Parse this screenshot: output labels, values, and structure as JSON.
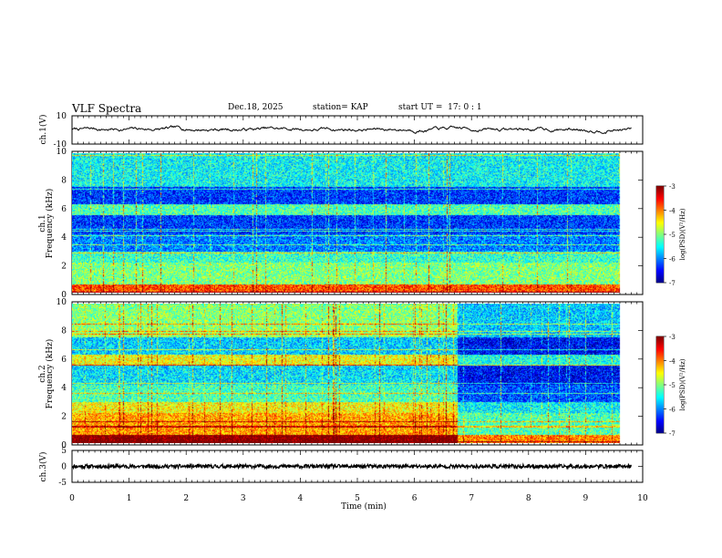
{
  "header": {
    "title": "VLF Spectra",
    "date": "Dec.18, 2025",
    "station_prefix": "station= ",
    "station": "KAP",
    "start_label": "start  UT  =",
    "start_time": "17: 0  : 1"
  },
  "chart_data": [
    {
      "type": "line",
      "panel": "waveform",
      "ylabel": "ch.1(V)",
      "ylim": [
        -10,
        10
      ],
      "ytick_labels": [
        "10",
        "-10"
      ],
      "xlim": [
        0,
        10
      ],
      "data_extent_min": [
        0,
        9.8
      ],
      "series": [
        {
          "name": "ch.1 waveform",
          "color": "#000000",
          "amplitude_range_v": [
            -2.5,
            3.5
          ],
          "mean_v": 0.5
        }
      ]
    },
    {
      "type": "heatmap",
      "panel": "spectrogram-ch1",
      "ylabel_line1": "ch.1",
      "ylabel_line2": "Frequency  (kHz)",
      "ylim": [
        0,
        10
      ],
      "ytick_labels": [
        "0",
        "2",
        "4",
        "6",
        "8",
        "10"
      ],
      "xlim": [
        0,
        10
      ],
      "data_extent_min": [
        0,
        9.8
      ],
      "colorbar": {
        "label": "log(PSD)(V²/Hz)",
        "range": [
          -7,
          -3
        ],
        "tick_labels": [
          "-3",
          "-4",
          "-5",
          "-6",
          "-7"
        ]
      },
      "description_levels": [
        {
          "band_khz": [
            0,
            0.6
          ],
          "level": -3.8
        },
        {
          "band_khz": [
            0.6,
            2.2
          ],
          "level": -5.0
        },
        {
          "band_khz": [
            2.2,
            3.0
          ],
          "level": -5.3
        },
        {
          "band_khz": [
            3.0,
            4.2
          ],
          "level": -6.0
        },
        {
          "band_khz": [
            4.2,
            5.6
          ],
          "level": -6.3
        },
        {
          "band_khz": [
            5.6,
            6.4
          ],
          "level": -5.2
        },
        {
          "band_khz": [
            6.4,
            7.6
          ],
          "level": -6.3
        },
        {
          "band_khz": [
            7.6,
            10
          ],
          "level": -5.5
        }
      ]
    },
    {
      "type": "heatmap",
      "panel": "spectrogram-ch2",
      "ylabel_line1": "ch.2",
      "ylabel_line2": "Frequency  (kHz)",
      "ylim": [
        0,
        10
      ],
      "ytick_labels": [
        "0",
        "2",
        "4",
        "6",
        "8",
        "10"
      ],
      "xlim": [
        0,
        10
      ],
      "data_extent_min": [
        0,
        9.8
      ],
      "colorbar": {
        "label": "log(PSD)(V²/Hz)",
        "range": [
          -7,
          -3
        ],
        "tick_labels": [
          "-3",
          "-4",
          "-5",
          "-6",
          "-7"
        ]
      },
      "level_change_time_min": 6.9
    },
    {
      "type": "line",
      "panel": "waveform-ch3",
      "ylabel": "ch.3(V)",
      "ylim": [
        -5,
        5
      ],
      "ytick_labels": [
        "5",
        "0",
        "-5"
      ],
      "xlim": [
        0,
        10
      ],
      "data_extent_min": [
        0,
        9.8
      ],
      "series": [
        {
          "name": "ch.3 waveform",
          "color": "#000000",
          "amplitude_range_v": [
            -0.6,
            0.6
          ],
          "mean_v": 0
        }
      ]
    }
  ],
  "xaxis": {
    "label": "Time  (min)",
    "range": [
      0,
      10
    ],
    "tick_labels": [
      "0",
      "1",
      "2",
      "3",
      "4",
      "5",
      "6",
      "7",
      "8",
      "9",
      "10"
    ]
  }
}
